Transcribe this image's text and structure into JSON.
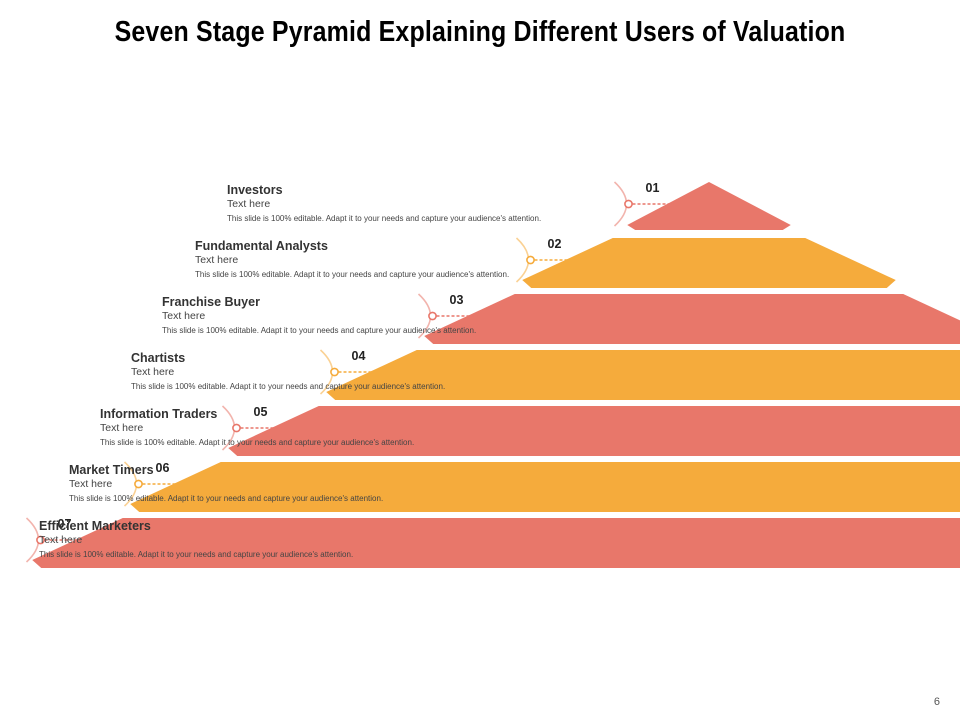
{
  "title": "Seven Stage Pyramid Explaining Different Users of Valuation",
  "colors": {
    "coral": "#e8776a",
    "amber": "#f5ab3c"
  },
  "stages": [
    {
      "number": "01",
      "name": "Investors",
      "subtitle": "Text here",
      "description": "This slide is 100% editable. Adapt it to your needs and capture your audience's attention.",
      "color": "#e8776a"
    },
    {
      "number": "02",
      "name": "Fundamental Analysts",
      "subtitle": "Text here",
      "description": "This slide is 100% editable. Adapt it to your needs and capture your audience's attention.",
      "color": "#f5ab3c"
    },
    {
      "number": "03",
      "name": "Franchise Buyer",
      "subtitle": "Text here",
      "description": "This slide is 100% editable. Adapt it to your needs and capture your audience's attention.",
      "color": "#e8776a"
    },
    {
      "number": "04",
      "name": "Chartists",
      "subtitle": "Text here",
      "description": "This slide is 100% editable. Adapt it to your needs and capture your audience's attention.",
      "color": "#f5ab3c"
    },
    {
      "number": "05",
      "name": "Information Traders",
      "subtitle": "Text here",
      "description": "This slide is 100% editable. Adapt it to your needs and capture your audience's attention.",
      "color": "#e8776a"
    },
    {
      "number": "06",
      "name": "Market Timers",
      "subtitle": "Text here",
      "description": "This slide is 100% editable. Adapt it to your needs and capture your audience's attention.",
      "color": "#f5ab3c"
    },
    {
      "number": "07",
      "name": "Efficient Marketers",
      "subtitle": "Text here",
      "description": "This slide is 100% editable. Adapt it to your needs and capture your audience's attention.",
      "color": "#e8776a"
    }
  ],
  "page_number": "6"
}
